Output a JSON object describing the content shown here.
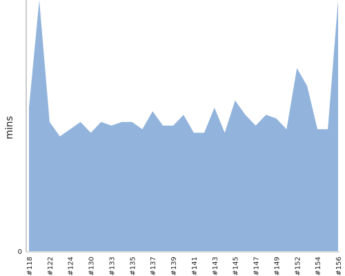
{
  "chart_data": {
    "type": "area",
    "title": "",
    "xlabel": "",
    "ylabel": "mins",
    "y_tick_labels": [
      "0"
    ],
    "ylim": [
      0,
      70
    ],
    "grid": false,
    "legend": "none",
    "color": "#92b4dc",
    "x_tick_labels": [
      "#118",
      "#122",
      "#124",
      "#130",
      "#133",
      "#135",
      "#137",
      "#139",
      "#141",
      "#143",
      "#145",
      "#147",
      "#149",
      "#152",
      "#154",
      "#156"
    ],
    "x_tick_index": [
      0,
      2,
      4,
      6,
      8,
      10,
      12,
      14,
      16,
      18,
      20,
      22,
      24,
      26,
      28,
      30
    ],
    "values": [
      40,
      70,
      36,
      32,
      34,
      36,
      33,
      36,
      35,
      36,
      36,
      34,
      39,
      35,
      35,
      38,
      33,
      33,
      40,
      33,
      42,
      38,
      35,
      38,
      37,
      34,
      51,
      46,
      34,
      34,
      70
    ]
  }
}
